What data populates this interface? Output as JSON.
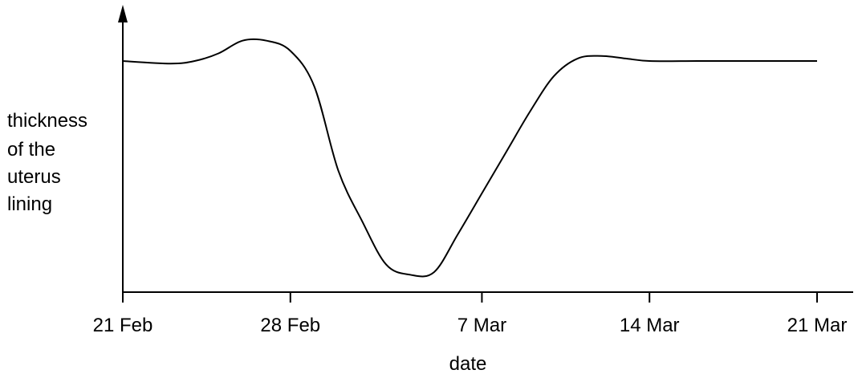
{
  "chart_data": {
    "type": "line",
    "title": "",
    "xlabel": "date",
    "ylabel_lines": [
      "thickness",
      "of the",
      "uterus",
      "lining"
    ],
    "x_ticks": [
      "21 Feb",
      "28 Feb",
      "7 Mar",
      "14 Mar",
      "21 Mar"
    ],
    "x_tick_dates": [
      "2024-02-21",
      "2024-02-28",
      "2024-03-07",
      "2024-03-14",
      "2024-03-21"
    ],
    "ylim": [
      0,
      1
    ],
    "grid": false,
    "series": [
      {
        "color": "#000000",
        "x": [
          "2024-02-21",
          "2024-02-23",
          "2024-02-24",
          "2024-02-25",
          "2024-02-26",
          "2024-02-27",
          "2024-02-28",
          "2024-02-29",
          "2024-03-01",
          "2024-03-02",
          "2024-03-03",
          "2024-03-04",
          "2024-03-05",
          "2024-03-06",
          "2024-03-07",
          "2024-03-08",
          "2024-03-09",
          "2024-03-10",
          "2024-03-11",
          "2024-03-12",
          "2024-03-13",
          "2024-03-14",
          "2024-03-16",
          "2024-03-18",
          "2024-03-21"
        ],
        "y": [
          0.88,
          0.87,
          0.88,
          0.91,
          0.96,
          0.96,
          0.92,
          0.78,
          0.45,
          0.25,
          0.08,
          0.04,
          0.05,
          0.2,
          0.36,
          0.52,
          0.68,
          0.82,
          0.89,
          0.9,
          0.89,
          0.88,
          0.88,
          0.88,
          0.88
        ]
      }
    ]
  }
}
